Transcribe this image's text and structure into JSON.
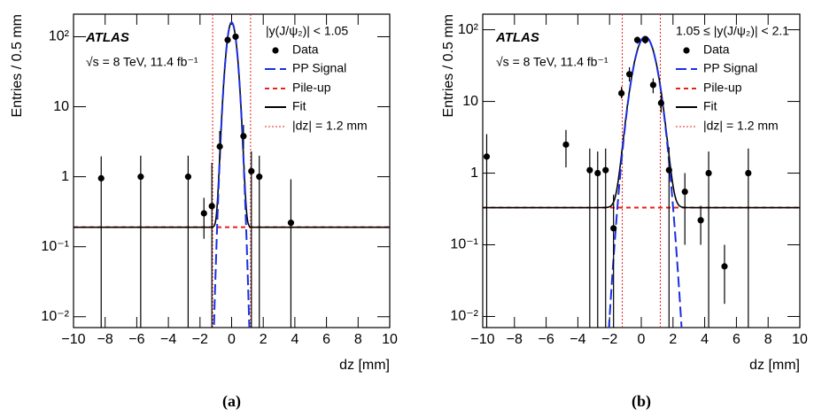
{
  "chart_data": [
    {
      "type": "scatter",
      "panel_label": "(a)",
      "experiment": "ATLAS",
      "energy_label": "√s = 8 TeV, 11.4 fb⁻¹",
      "region_label": "|y(J/ψ₂)| < 1.05",
      "ylabel": "Entries / 0.5 mm",
      "xlabel": "dz [mm]",
      "log_y": true,
      "xlim": [
        -10,
        10
      ],
      "ylim": [
        0.007,
        210
      ],
      "xticks": [
        {
          "value": -10,
          "label": "−10"
        },
        {
          "value": -8,
          "label": "−8"
        },
        {
          "value": -6,
          "label": "−6"
        },
        {
          "value": -4,
          "label": "−4"
        },
        {
          "value": -2,
          "label": "−2"
        },
        0,
        2,
        4,
        6,
        8,
        10
      ],
      "yticks": [
        {
          "value": 0.01,
          "label": "10⁻²"
        },
        {
          "value": 0.1,
          "label": "10⁻¹"
        },
        1,
        10,
        {
          "value": 100,
          "label": "10²"
        }
      ],
      "series": [
        {
          "name": "Data",
          "color": "#000000",
          "x": [
            -8.25,
            -5.75,
            -2.75,
            -1.75,
            -1.25,
            -0.75,
            -0.25,
            0.25,
            0.75,
            1.25,
            1.75,
            3.75
          ],
          "values": [
            0.95,
            1.0,
            1.0,
            0.3,
            0.38,
            2.7,
            90,
            100,
            3.8,
            1.2,
            1.0,
            0.22
          ],
          "errors_low": [
            0.95,
            1.0,
            1.0,
            0.17,
            0.38,
            1.0,
            10,
            10,
            1.3,
            1.2,
            1.0,
            0.22
          ],
          "errors_high": [
            1.0,
            1.0,
            1.0,
            0.2,
            1.2,
            1.8,
            10,
            10,
            1.7,
            1.1,
            1.0,
            0.7
          ]
        },
        {
          "name": "PP Signal",
          "color": "#1a2fe0",
          "dash": "long",
          "amplitude": 160,
          "mean": 0,
          "sigma": 0.25
        },
        {
          "name": "Pile-up",
          "color": "#e8201c",
          "dash": "short",
          "level": 0.19
        },
        {
          "name": "Fit",
          "color": "#000000"
        },
        {
          "name": "|dz| = 1.2 mm",
          "color": "#e8201c",
          "dash": "dotted",
          "positions": [
            -1.2,
            1.2
          ]
        }
      ]
    },
    {
      "type": "scatter",
      "panel_label": "(b)",
      "experiment": "ATLAS",
      "energy_label": "√s = 8 TeV, 11.4 fb⁻¹",
      "region_label": "1.05 ≤ |y(J/ψ₂)| < 2.1",
      "ylabel": "Entries / 0.5 mm",
      "xlabel": "dz [mm]",
      "log_y": true,
      "xlim": [
        -10,
        10
      ],
      "ylim": [
        0.007,
        165
      ],
      "xticks": [
        {
          "value": -10,
          "label": "−10"
        },
        {
          "value": -8,
          "label": "−8"
        },
        {
          "value": -6,
          "label": "−6"
        },
        {
          "value": -4,
          "label": "−4"
        },
        {
          "value": -2,
          "label": "−2"
        },
        0,
        2,
        4,
        6,
        8,
        10
      ],
      "yticks": [
        {
          "value": 0.01,
          "label": "10⁻²"
        },
        {
          "value": 0.1,
          "label": "10⁻¹"
        },
        1,
        10,
        {
          "value": 100,
          "label": "10²"
        }
      ],
      "series": [
        {
          "name": "Data",
          "color": "#000000",
          "x": [
            -9.75,
            -4.75,
            -3.25,
            -2.75,
            -2.25,
            -1.75,
            -1.25,
            -0.75,
            -0.25,
            0.25,
            0.75,
            1.25,
            1.75,
            2.75,
            3.75,
            4.25,
            5.25,
            6.75
          ],
          "values": [
            1.7,
            2.5,
            1.1,
            1.0,
            1.1,
            0.17,
            13,
            24,
            72,
            72,
            17,
            9.5,
            1.1,
            0.55,
            0.22,
            1.0,
            0.05,
            1.0
          ],
          "errors_low": [
            1.7,
            1.3,
            1.1,
            1.0,
            1.1,
            0.17,
            2,
            5,
            8,
            8,
            4,
            2.5,
            1.1,
            0.45,
            0.12,
            1.0,
            0.035,
            1.0
          ],
          "errors_high": [
            1.8,
            1.5,
            1.1,
            1.0,
            1.1,
            0.33,
            3,
            6,
            8,
            8,
            4,
            2.5,
            1.2,
            0.45,
            0.13,
            1.0,
            0.05,
            1.2
          ]
        },
        {
          "name": "PP Signal",
          "color": "#1a2fe0",
          "dash": "long",
          "amplitude": 80,
          "mean": 0.25,
          "sigma": 0.53
        },
        {
          "name": "Pile-up",
          "color": "#e8201c",
          "dash": "short",
          "level": 0.33
        },
        {
          "name": "Fit",
          "color": "#000000"
        },
        {
          "name": "|dz| = 1.2 mm",
          "color": "#e8201c",
          "dash": "dotted",
          "positions": [
            -1.2,
            1.2
          ]
        }
      ]
    }
  ]
}
